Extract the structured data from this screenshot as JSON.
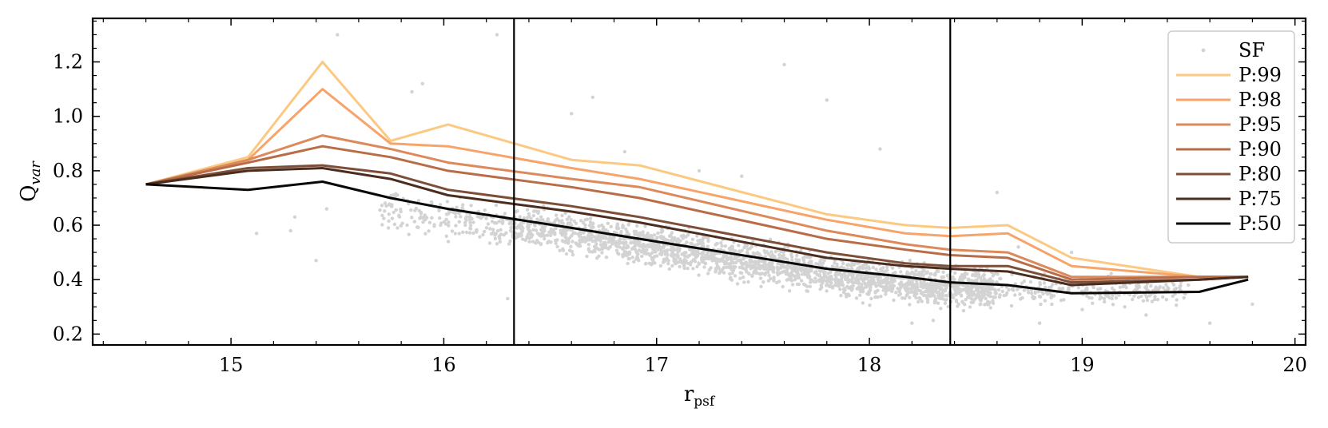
{
  "chart_data": {
    "type": "line",
    "title": "",
    "xlabel": "r",
    "xlabel_sub": "psf",
    "ylabel": "Q",
    "ylabel_sub": "var",
    "xlim": [
      14.35,
      20.05
    ],
    "ylim": [
      0.16,
      1.36
    ],
    "xticks": [
      15,
      16,
      17,
      18,
      19,
      20
    ],
    "yticks": [
      0.2,
      0.4,
      0.6,
      0.8,
      1.0,
      1.2
    ],
    "ytick_labels": [
      "0.2",
      "0.4",
      "0.6",
      "0.8",
      "1.0",
      "1.2"
    ],
    "vlines": [
      16.33,
      18.38
    ],
    "legend_position": "top-right",
    "scatter": {
      "name": "SF",
      "color": "#d3d3d3",
      "band": [
        [
          15.7,
          0.76,
          0.55
        ],
        [
          16.3,
          0.7,
          0.5
        ],
        [
          17.0,
          0.62,
          0.42
        ],
        [
          17.5,
          0.56,
          0.36
        ],
        [
          18.0,
          0.5,
          0.3
        ],
        [
          18.4,
          0.47,
          0.27
        ],
        [
          18.8,
          0.45,
          0.28
        ],
        [
          19.5,
          0.42,
          0.3
        ]
      ],
      "outliers": [
        [
          15.5,
          1.3
        ],
        [
          16.25,
          1.3
        ],
        [
          15.85,
          1.09
        ],
        [
          15.9,
          1.12
        ],
        [
          16.6,
          1.01
        ],
        [
          16.7,
          1.07
        ],
        [
          17.6,
          1.19
        ],
        [
          17.8,
          1.06
        ],
        [
          18.05,
          0.88
        ],
        [
          18.6,
          0.72
        ],
        [
          15.28,
          0.58
        ],
        [
          15.12,
          0.57
        ],
        [
          15.4,
          0.47
        ],
        [
          15.45,
          0.66
        ],
        [
          15.3,
          0.63
        ],
        [
          16.3,
          0.33
        ],
        [
          18.2,
          0.24
        ],
        [
          18.3,
          0.25
        ],
        [
          18.8,
          0.24
        ],
        [
          19.0,
          0.29
        ],
        [
          19.2,
          0.3
        ],
        [
          19.3,
          0.27
        ],
        [
          19.6,
          0.24
        ],
        [
          19.8,
          0.31
        ],
        [
          19.4,
          0.36
        ],
        [
          16.85,
          0.87
        ],
        [
          17.2,
          0.8
        ],
        [
          17.4,
          0.78
        ],
        [
          18.95,
          0.5
        ],
        [
          18.7,
          0.52
        ]
      ]
    },
    "x": [
      14.6,
      15.08,
      15.43,
      15.75,
      16.02,
      16.6,
      16.92,
      17.8,
      18.17,
      18.38,
      18.65,
      18.95,
      19.55,
      19.78
    ],
    "series": [
      {
        "name": "P:99",
        "color": "#fbc981",
        "values": [
          0.75,
          0.85,
          1.2,
          0.91,
          0.97,
          0.84,
          0.82,
          0.64,
          0.6,
          0.59,
          0.6,
          0.48,
          0.41,
          0.41
        ]
      },
      {
        "name": "P:98",
        "color": "#f6a46a",
        "values": [
          0.75,
          0.84,
          1.1,
          0.9,
          0.89,
          0.81,
          0.77,
          0.62,
          0.57,
          0.56,
          0.57,
          0.45,
          0.41,
          0.41
        ]
      },
      {
        "name": "P:95",
        "color": "#dc8a5b",
        "values": [
          0.75,
          0.84,
          0.93,
          0.88,
          0.83,
          0.77,
          0.74,
          0.58,
          0.53,
          0.51,
          0.5,
          0.41,
          0.41,
          0.41
        ]
      },
      {
        "name": "P:90",
        "color": "#b86d48",
        "values": [
          0.75,
          0.83,
          0.89,
          0.85,
          0.8,
          0.74,
          0.7,
          0.55,
          0.51,
          0.49,
          0.48,
          0.4,
          0.41,
          0.41
        ]
      },
      {
        "name": "P:80",
        "color": "#7e4f38",
        "values": [
          0.75,
          0.81,
          0.82,
          0.79,
          0.73,
          0.67,
          0.63,
          0.5,
          0.46,
          0.45,
          0.45,
          0.39,
          0.4,
          0.41
        ]
      },
      {
        "name": "P:75",
        "color": "#4a2d1f",
        "values": [
          0.75,
          0.8,
          0.81,
          0.77,
          0.71,
          0.65,
          0.61,
          0.48,
          0.45,
          0.44,
          0.43,
          0.38,
          0.4,
          0.41
        ]
      },
      {
        "name": "P:50",
        "color": "#0b0704",
        "values": [
          0.75,
          0.73,
          0.76,
          0.7,
          0.66,
          0.59,
          0.55,
          0.44,
          0.41,
          0.39,
          0.38,
          0.35,
          0.355,
          0.4
        ]
      }
    ]
  }
}
